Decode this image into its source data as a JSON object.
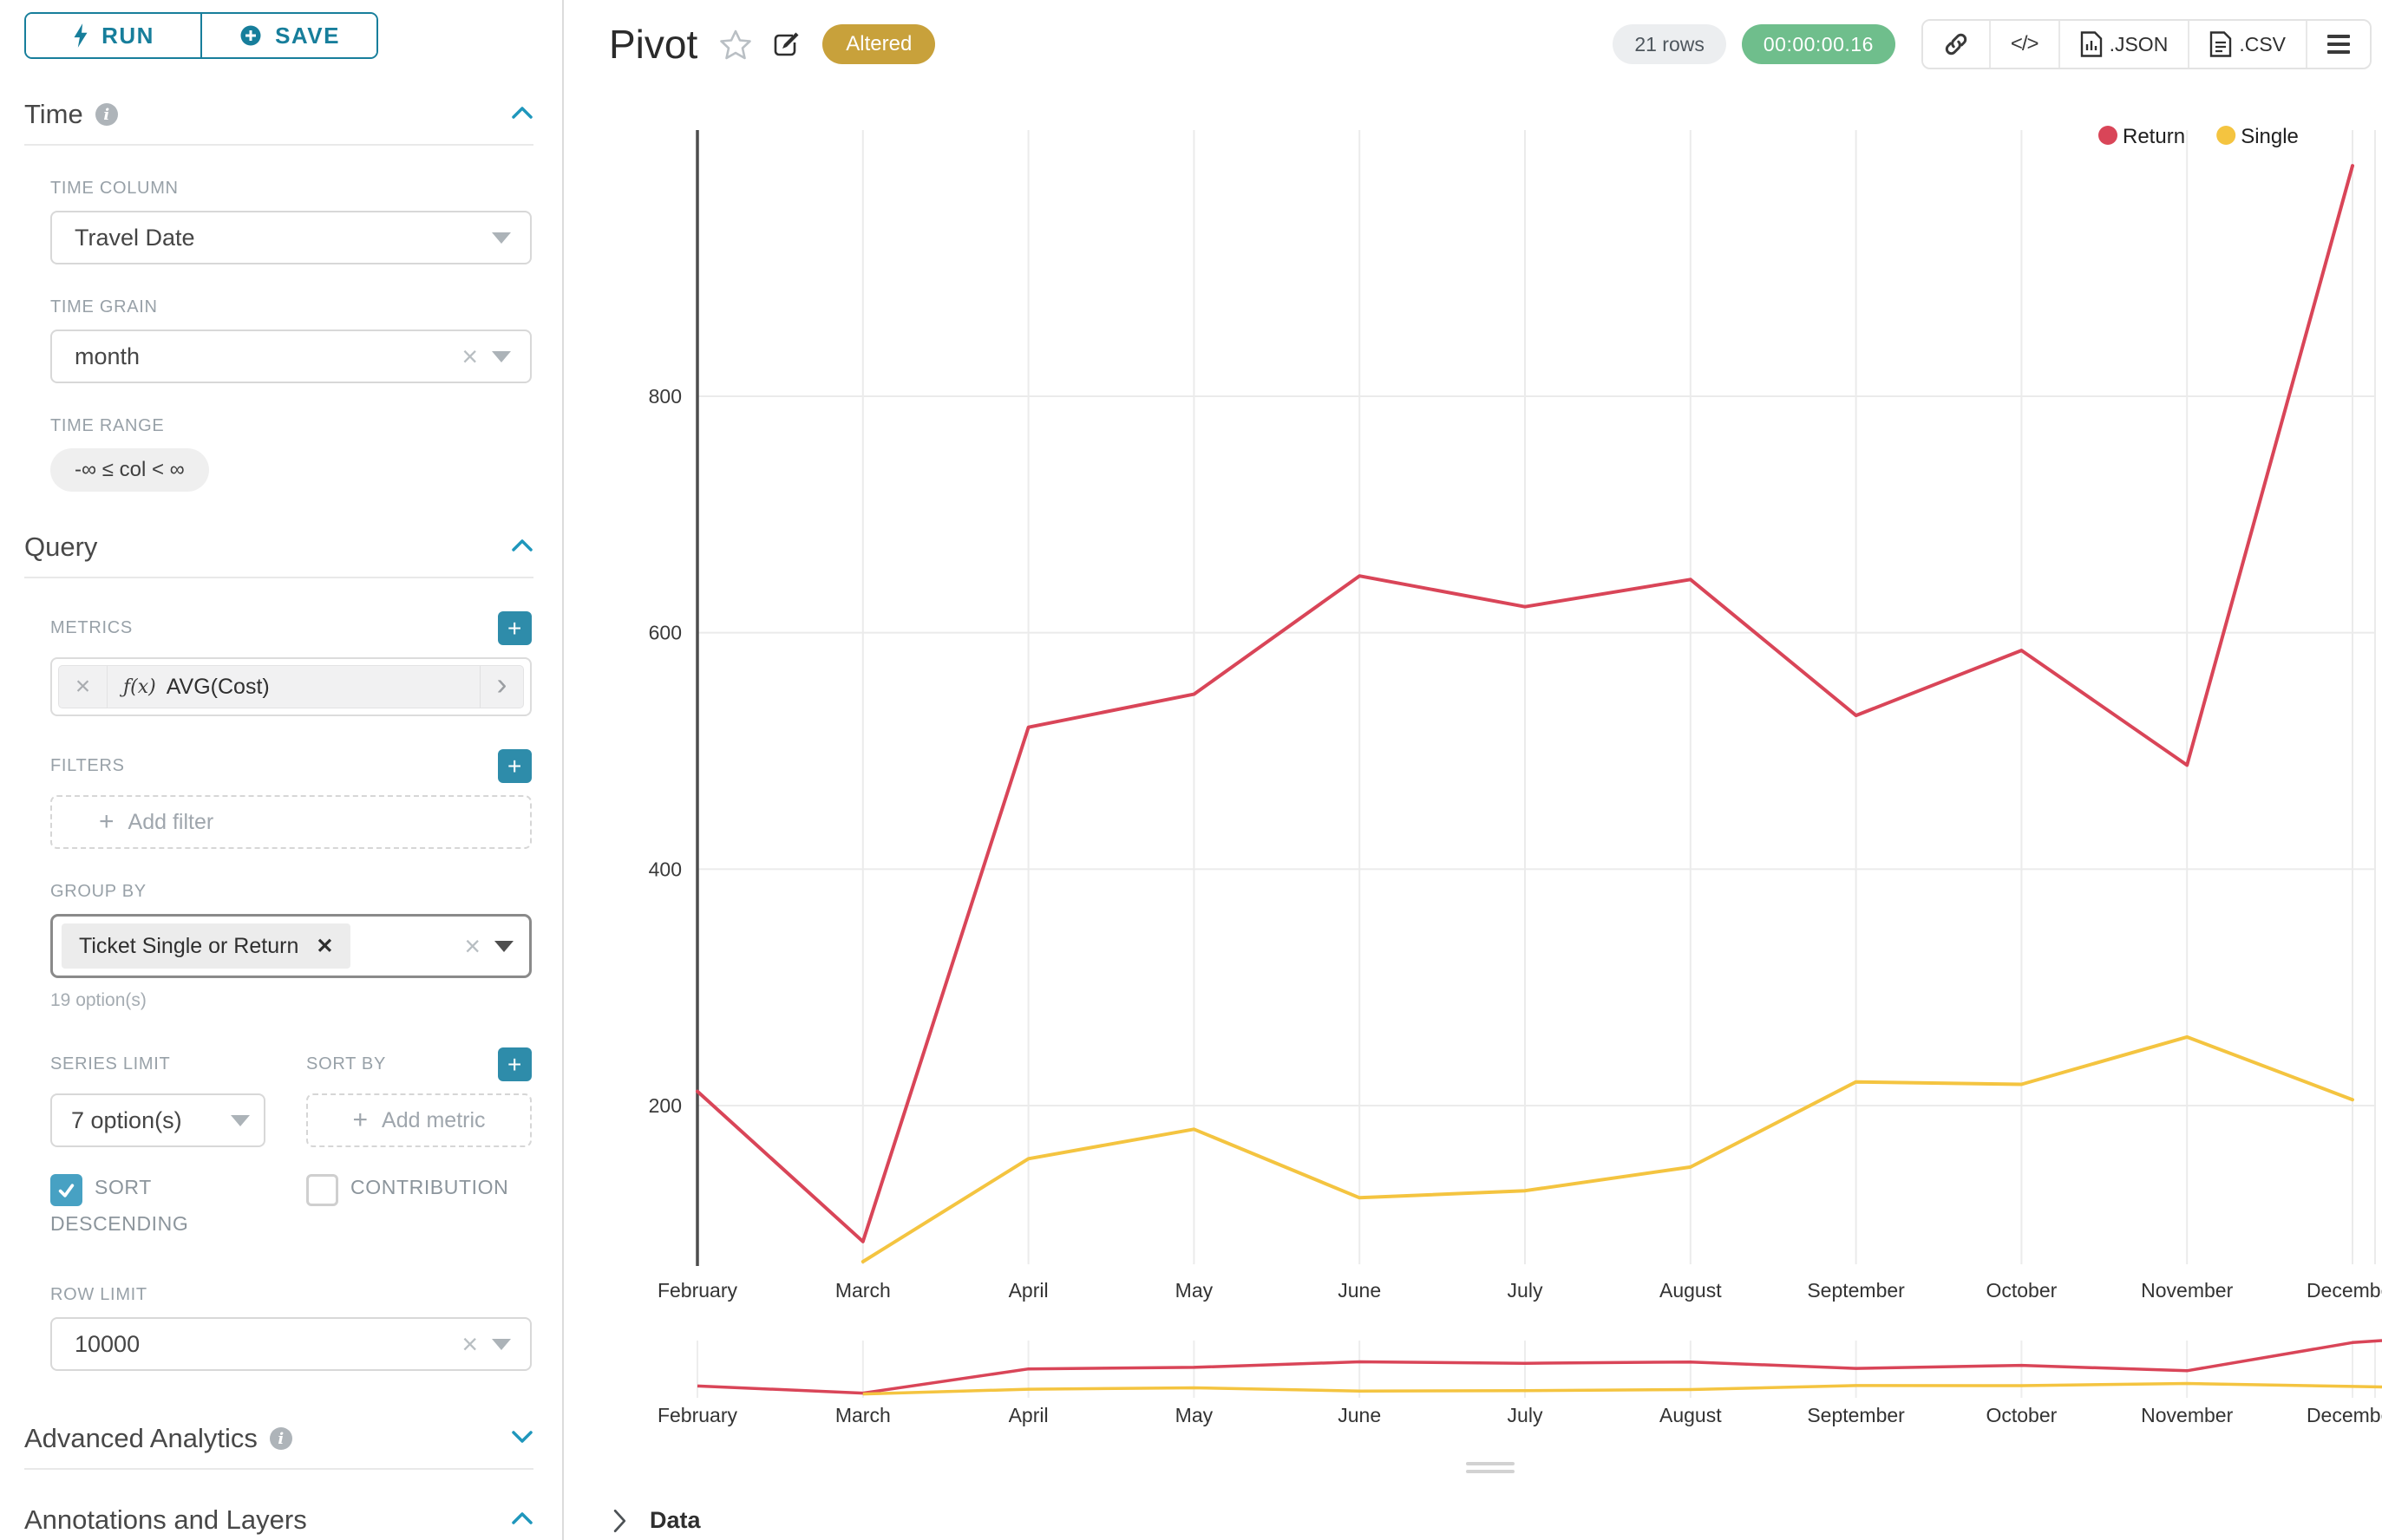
{
  "colors": {
    "accent": "#177E9B",
    "plus_button": "#2E8CAA",
    "checkbox": "#47A1C3",
    "badge_gold": "#C8A13B",
    "timer_green": "#6FBE8C",
    "return_red": "#D94558",
    "single_yellow": "#F4C440"
  },
  "toolbar": {
    "run": "RUN",
    "save": "SAVE"
  },
  "sidebar": {
    "time": {
      "title": "Time",
      "time_column_label": "TIME COLUMN",
      "time_column_value": "Travel Date",
      "time_grain_label": "TIME GRAIN",
      "time_grain_value": "month",
      "time_range_label": "TIME RANGE",
      "time_range_value": "-∞ ≤ col < ∞"
    },
    "query": {
      "title": "Query",
      "metrics_label": "METRICS",
      "metric_fx": "ƒ(x)",
      "metric_value": "AVG(Cost)",
      "filters_label": "FILTERS",
      "add_filter_label": "Add filter",
      "group_by_label": "GROUP BY",
      "group_by_value": "Ticket Single or Return",
      "group_by_hint": "19 option(s)",
      "series_limit_label": "SERIES LIMIT",
      "series_limit_value": "7 option(s)",
      "sort_by_label": "SORT BY",
      "add_metric_label": "Add metric",
      "sort_descending_label": "SORT DESCENDING",
      "contribution_label": "CONTRIBUTION",
      "row_limit_label": "ROW LIMIT",
      "row_limit_value": "10000"
    },
    "advanced_title": "Advanced Analytics",
    "annotations_title": "Annotations and Layers"
  },
  "header": {
    "title": "Pivot",
    "badge": "Altered",
    "rows": "21 rows",
    "duration": "00:00:00.16",
    "json_label": ".JSON",
    "csv_label": ".CSV"
  },
  "chart_data": {
    "type": "line",
    "x": [
      "February",
      "March",
      "April",
      "May",
      "June",
      "July",
      "August",
      "September",
      "October",
      "November",
      "December"
    ],
    "series": [
      {
        "name": "Return",
        "color": "#D94558",
        "values": [
          212,
          85,
          520,
          548,
          648,
          622,
          645,
          530,
          585,
          488,
          995
        ]
      },
      {
        "name": "Single",
        "color": "#F4C440",
        "values": [
          null,
          68,
          155,
          180,
          122,
          128,
          148,
          220,
          218,
          258,
          205
        ]
      }
    ],
    "yticks": [
      200,
      400,
      600,
      800
    ],
    "ylim": [
      60,
      1005
    ],
    "xlabel": "",
    "ylabel": "",
    "grid": true,
    "legend_position": "top-right",
    "has_minimap": true
  },
  "footer": {
    "data_label": "Data"
  }
}
